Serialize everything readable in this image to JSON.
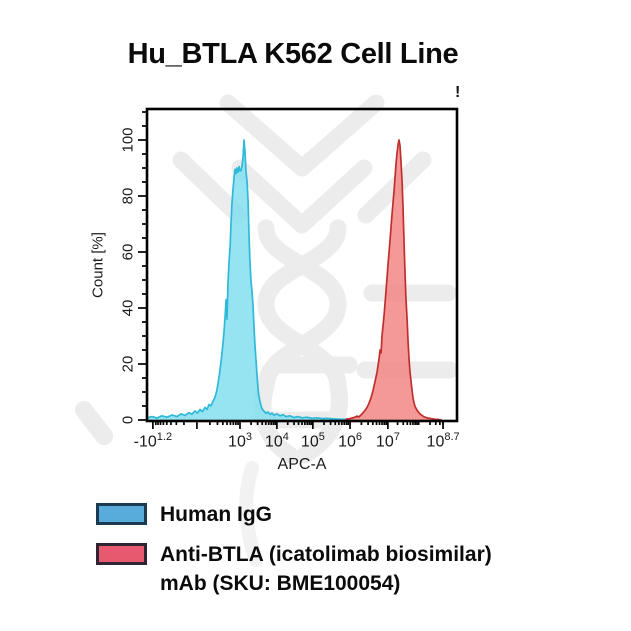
{
  "title": "Hu_BTLA K562 Cell Line",
  "plot": {
    "overflow_indicator": "!"
  },
  "chart_data": {
    "type": "area",
    "subtype": "flow-cytometry-histogram-overlay",
    "title": "Hu_BTLA K562 Cell Line",
    "xlabel": "APC-A",
    "ylabel": "Count [%]",
    "grid": false,
    "legend_position": "bottom-left",
    "x_axis": {
      "scale": "biexponential",
      "ticks": [
        {
          "base": "-10",
          "sup": "1.2",
          "frac": 0.019
        },
        {
          "base": "10",
          "sup": "3",
          "frac": 0.3
        },
        {
          "base": "10",
          "sup": "4",
          "frac": 0.419
        },
        {
          "base": "10",
          "sup": "5",
          "frac": 0.535
        },
        {
          "base": "10",
          "sup": "6",
          "frac": 0.655
        },
        {
          "base": "10",
          "sup": "7",
          "frac": 0.777
        },
        {
          "base": "10",
          "sup": "8.7",
          "frac": 0.955
        }
      ],
      "unlabeled_major_fracs": [
        0.161
      ]
    },
    "y_axis": {
      "range": [
        0,
        100
      ],
      "major_ticks": [
        0,
        20,
        40,
        60,
        80,
        100
      ],
      "minor_step": 5
    },
    "series": [
      {
        "name": "Human IgG",
        "fill": "#7FDDEF",
        "stroke": "#2FB9D8",
        "peak_position": "~10^3",
        "peak_count_pct": 100,
        "points": [
          [
            0.0,
            0.8
          ],
          [
            0.016,
            1.2
          ],
          [
            0.032,
            0.7
          ],
          [
            0.048,
            1.5
          ],
          [
            0.065,
            1.0
          ],
          [
            0.081,
            1.8
          ],
          [
            0.097,
            1.2
          ],
          [
            0.11,
            2.2
          ],
          [
            0.123,
            1.6
          ],
          [
            0.135,
            2.6
          ],
          [
            0.145,
            2.1
          ],
          [
            0.155,
            3.2
          ],
          [
            0.163,
            2.5
          ],
          [
            0.171,
            3.8
          ],
          [
            0.179,
            3.0
          ],
          [
            0.187,
            4.5
          ],
          [
            0.194,
            3.8
          ],
          [
            0.2,
            5.5
          ],
          [
            0.206,
            5.0
          ],
          [
            0.212,
            6.5
          ],
          [
            0.219,
            8.0
          ],
          [
            0.225,
            10.5
          ],
          [
            0.229,
            13.0
          ],
          [
            0.234,
            16.5
          ],
          [
            0.239,
            21.0
          ],
          [
            0.244,
            26.0
          ],
          [
            0.248,
            31.0
          ],
          [
            0.252,
            37.0
          ],
          [
            0.255,
            43.0
          ],
          [
            0.258,
            36.0
          ],
          [
            0.261,
            48.0
          ],
          [
            0.264,
            55.0
          ],
          [
            0.268,
            62.0
          ],
          [
            0.271,
            70.0
          ],
          [
            0.274,
            77.0
          ],
          [
            0.277,
            82.0
          ],
          [
            0.281,
            87.0
          ],
          [
            0.284,
            89.5
          ],
          [
            0.287,
            88.0
          ],
          [
            0.29,
            90.0
          ],
          [
            0.294,
            88.5
          ],
          [
            0.297,
            90.5
          ],
          [
            0.3,
            89.0
          ],
          [
            0.303,
            89.0
          ],
          [
            0.306,
            90.5
          ],
          [
            0.31,
            94.0
          ],
          [
            0.313,
            100.0
          ],
          [
            0.316,
            96.0
          ],
          [
            0.319,
            89.0
          ],
          [
            0.323,
            85.0
          ],
          [
            0.326,
            78.0
          ],
          [
            0.329,
            66.0
          ],
          [
            0.332,
            57.0
          ],
          [
            0.335,
            50.0
          ],
          [
            0.339,
            45.5
          ],
          [
            0.342,
            41.0
          ],
          [
            0.345,
            34.0
          ],
          [
            0.348,
            27.0
          ],
          [
            0.352,
            21.0
          ],
          [
            0.355,
            15.5
          ],
          [
            0.358,
            11.5
          ],
          [
            0.361,
            8.5
          ],
          [
            0.365,
            6.5
          ],
          [
            0.368,
            5.0
          ],
          [
            0.371,
            4.0
          ],
          [
            0.377,
            3.2
          ],
          [
            0.384,
            2.4
          ],
          [
            0.39,
            2.9
          ],
          [
            0.397,
            2.0
          ],
          [
            0.403,
            2.5
          ],
          [
            0.41,
            1.7
          ],
          [
            0.419,
            2.2
          ],
          [
            0.429,
            1.5
          ],
          [
            0.439,
            1.9
          ],
          [
            0.448,
            1.2
          ],
          [
            0.461,
            1.5
          ],
          [
            0.474,
            0.9
          ],
          [
            0.487,
            1.2
          ],
          [
            0.5,
            0.8
          ],
          [
            0.516,
            1.0
          ],
          [
            0.532,
            0.6
          ],
          [
            0.548,
            0.8
          ],
          [
            0.565,
            0.5
          ],
          [
            0.581,
            0.6
          ],
          [
            0.6,
            0.4
          ],
          [
            0.62,
            0.3
          ],
          [
            0.64,
            0.2
          ],
          [
            0.655,
            0.15
          ]
        ]
      },
      {
        "name": "Anti-BTLA (icatolimab biosimilar) mAb (SKU: BME100054)",
        "fill": "#F18281",
        "stroke": "#C12F2D",
        "peak_position": "~10^7.3",
        "peak_count_pct": 100,
        "points": [
          [
            0.64,
            0.2
          ],
          [
            0.655,
            0.5
          ],
          [
            0.668,
            0.9
          ],
          [
            0.677,
            1.4
          ],
          [
            0.684,
            1.1
          ],
          [
            0.69,
            1.8
          ],
          [
            0.697,
            2.6
          ],
          [
            0.703,
            3.4
          ],
          [
            0.71,
            4.5
          ],
          [
            0.716,
            6.0
          ],
          [
            0.723,
            8.0
          ],
          [
            0.729,
            10.5
          ],
          [
            0.735,
            13.5
          ],
          [
            0.742,
            17.0
          ],
          [
            0.748,
            21.5
          ],
          [
            0.752,
            25.0
          ],
          [
            0.755,
            24.0
          ],
          [
            0.758,
            30.0
          ],
          [
            0.765,
            37.5
          ],
          [
            0.771,
            46.0
          ],
          [
            0.777,
            55.0
          ],
          [
            0.784,
            64.0
          ],
          [
            0.79,
            73.0
          ],
          [
            0.797,
            82.0
          ],
          [
            0.803,
            91.0
          ],
          [
            0.806,
            95.0
          ],
          [
            0.81,
            98.5
          ],
          [
            0.813,
            100.0
          ],
          [
            0.816,
            98.0
          ],
          [
            0.819,
            93.0
          ],
          [
            0.823,
            85.0
          ],
          [
            0.826,
            75.0
          ],
          [
            0.829,
            64.0
          ],
          [
            0.832,
            54.0
          ],
          [
            0.835,
            44.5
          ],
          [
            0.839,
            36.0
          ],
          [
            0.842,
            28.5
          ],
          [
            0.845,
            22.5
          ],
          [
            0.848,
            17.5
          ],
          [
            0.852,
            13.5
          ],
          [
            0.855,
            10.5
          ],
          [
            0.858,
            8.0
          ],
          [
            0.861,
            6.2
          ],
          [
            0.865,
            4.8
          ],
          [
            0.871,
            3.5
          ],
          [
            0.877,
            2.6
          ],
          [
            0.884,
            1.9
          ],
          [
            0.89,
            1.4
          ],
          [
            0.897,
            1.0
          ],
          [
            0.906,
            0.7
          ],
          [
            0.916,
            0.5
          ],
          [
            0.929,
            0.3
          ],
          [
            0.942,
            0.15
          ],
          [
            0.95,
            0.1
          ]
        ]
      }
    ]
  },
  "legend": {
    "items": [
      {
        "label": "Human IgG",
        "label2": "",
        "fill": "#58ACDC",
        "border": "#1C3A52"
      },
      {
        "label": "Anti-BTLA (icatolimab biosimilar)",
        "label2": "mAb (SKU: BME100054)",
        "fill": "#E7596F",
        "border": "#2E2433"
      }
    ]
  },
  "colors": {
    "series1_fill": "#7FDDEF",
    "series1_stroke": "#2FB9D8",
    "series2_fill": "#F18281",
    "series2_stroke": "#C12F2D",
    "axis": "#000000",
    "watermark": "#ececec"
  }
}
